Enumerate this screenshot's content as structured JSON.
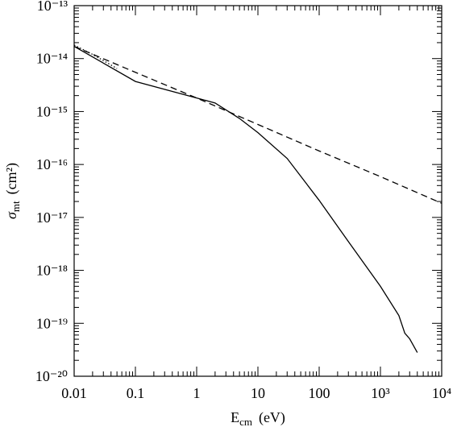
{
  "chart_data": {
    "type": "line",
    "x_label": {
      "symbol": "E",
      "subscript": "cm",
      "unit": "(eV)"
    },
    "y_label": {
      "symbol": "σ",
      "subscript": "mt",
      "unit": "(cm²)"
    },
    "xscale": "log",
    "yscale": "log",
    "xlim": [
      0.01,
      10000
    ],
    "ylim": [
      1e-20,
      1e-13
    ],
    "xticks": [
      0.01,
      0.1,
      1,
      10,
      100,
      {
        "value": 1000,
        "label": "10³"
      },
      {
        "value": 10000,
        "label": "10⁴"
      }
    ],
    "yticks": [
      {
        "value": 1e-20,
        "label": "10⁻²⁰"
      },
      {
        "value": 1e-19,
        "label": "10⁻¹⁹"
      },
      {
        "value": 1e-18,
        "label": "10⁻¹⁸"
      },
      {
        "value": 1e-17,
        "label": "10⁻¹⁷"
      },
      {
        "value": 1e-16,
        "label": "10⁻¹⁶"
      },
      {
        "value": 1e-15,
        "label": "10⁻¹⁵"
      },
      {
        "value": 1e-14,
        "label": "10⁻¹⁴"
      },
      {
        "value": 1e-13,
        "label": "10⁻¹³"
      }
    ],
    "grid": false,
    "series": [
      {
        "style": "solid",
        "color": "#000000",
        "x": [
          0.01,
          0.1,
          1,
          2,
          5,
          10,
          30,
          100,
          300,
          1000,
          2000,
          2500,
          3000,
          4000
        ],
        "values": [
          1.7e-14,
          3.7e-15,
          1.8e-15,
          1.45e-15,
          7.4e-16,
          4e-16,
          1.3e-16,
          2.1e-17,
          3.5e-18,
          5e-19,
          1.4e-19,
          6.5e-20,
          5.1e-20,
          2.8e-20
        ]
      },
      {
        "style": "dashed",
        "color": "#000000",
        "x": [
          0.01,
          0.1,
          1,
          10,
          100,
          1000,
          10000
        ],
        "values": [
          1.7e-14,
          5.5e-15,
          1.8e-15,
          5.7e-16,
          1.8e-16,
          5.9e-17,
          1.85e-17
        ]
      },
      {
        "style": "dotted",
        "color": "#000000",
        "x": [
          0.01,
          0.02,
          0.05
        ],
        "values": [
          1.8e-14,
          1.2e-14,
          6.5e-15
        ]
      }
    ]
  }
}
